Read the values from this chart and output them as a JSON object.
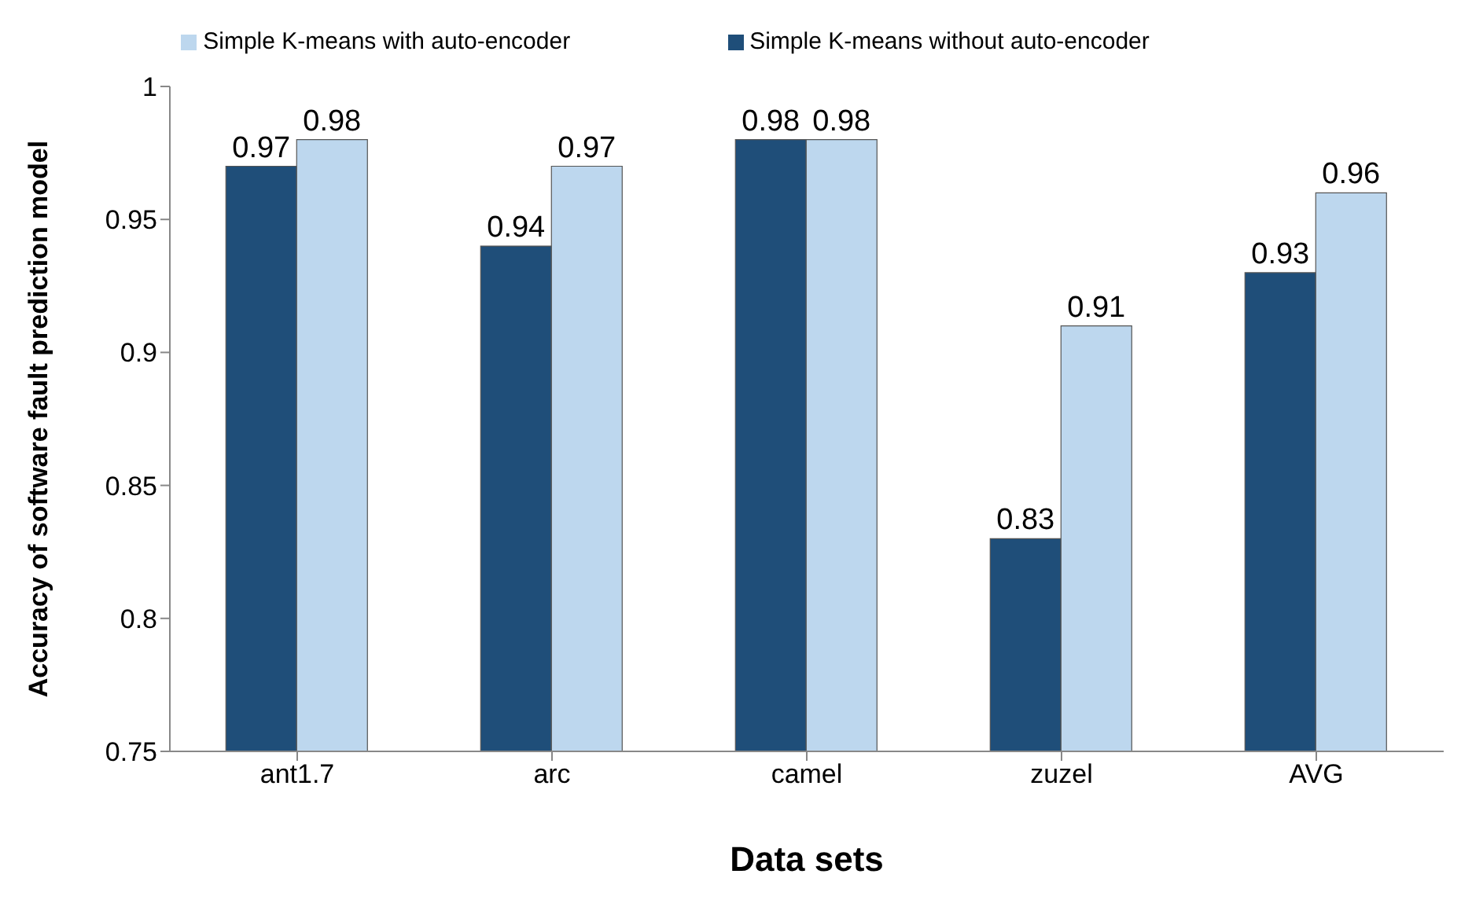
{
  "chart_data": {
    "type": "bar",
    "xlabel": "Data sets",
    "ylabel": "Accuracy of software fault prediction model",
    "categories": [
      "ant1.7",
      "arc",
      "camel",
      "zuzel",
      "AVG"
    ],
    "series": [
      {
        "name": "Simple K-means without auto-encoder",
        "color": "#1f4e79",
        "values": [
          0.97,
          0.94,
          0.98,
          0.83,
          0.93
        ]
      },
      {
        "name": "Simple K-means with auto-encoder",
        "color": "#bdd7ee",
        "values": [
          0.98,
          0.97,
          0.98,
          0.91,
          0.96
        ]
      }
    ],
    "ylim": [
      0.75,
      1
    ],
    "yticks": [
      0.75,
      0.8,
      0.85,
      0.9,
      0.95,
      1
    ],
    "grid": false,
    "legend": "top",
    "data_labels": true
  }
}
